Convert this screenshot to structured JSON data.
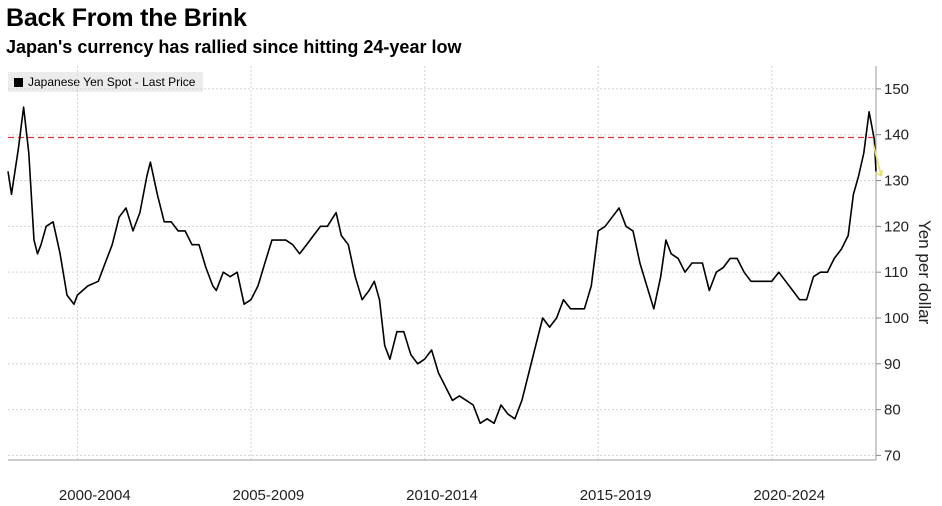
{
  "title": "Back From the Brink",
  "subtitle": "Japan's currency has rallied since hitting 24-year low",
  "chart_data": {
    "type": "line",
    "legend": "Japanese Yen Spot - Last Price",
    "ylabel": "Yen per dollar",
    "ylim": [
      69,
      155
    ],
    "xlim": [
      1998.0,
      2023.0
    ],
    "yticks": [
      70,
      80,
      90,
      100,
      110,
      120,
      130,
      140,
      150
    ],
    "xtick_labels": [
      "2000-2004",
      "2005-2009",
      "2010-2014",
      "2015-2019",
      "2020-2024"
    ],
    "xtick_centers": [
      2000.5,
      2005.5,
      2010.5,
      2015.5,
      2020.5
    ],
    "reference_line": 139.4,
    "series": [
      {
        "name": "Japanese Yen Spot - Last Price",
        "x": [
          1998.0,
          1998.1,
          1998.3,
          1998.45,
          1998.6,
          1998.75,
          1998.85,
          1998.95,
          1999.1,
          1999.3,
          1999.5,
          1999.7,
          1999.9,
          2000.0,
          2000.3,
          2000.6,
          2000.8,
          2001.0,
          2001.2,
          2001.4,
          2001.6,
          2001.8,
          2002.0,
          2002.1,
          2002.3,
          2002.5,
          2002.7,
          2002.9,
          2003.1,
          2003.3,
          2003.5,
          2003.7,
          2003.9,
          2004.0,
          2004.2,
          2004.4,
          2004.6,
          2004.8,
          2005.0,
          2005.2,
          2005.4,
          2005.6,
          2005.8,
          2006.0,
          2006.2,
          2006.4,
          2006.6,
          2006.8,
          2007.0,
          2007.2,
          2007.45,
          2007.6,
          2007.8,
          2008.0,
          2008.2,
          2008.4,
          2008.55,
          2008.7,
          2008.85,
          2009.0,
          2009.2,
          2009.4,
          2009.6,
          2009.8,
          2010.0,
          2010.2,
          2010.4,
          2010.6,
          2010.8,
          2011.0,
          2011.2,
          2011.4,
          2011.6,
          2011.8,
          2012.0,
          2012.2,
          2012.4,
          2012.6,
          2012.8,
          2013.0,
          2013.2,
          2013.4,
          2013.6,
          2013.8,
          2014.0,
          2014.2,
          2014.4,
          2014.6,
          2014.8,
          2015.0,
          2015.2,
          2015.4,
          2015.6,
          2015.8,
          2016.0,
          2016.2,
          2016.4,
          2016.6,
          2016.8,
          2016.95,
          2017.1,
          2017.3,
          2017.5,
          2017.7,
          2017.9,
          2018.0,
          2018.2,
          2018.4,
          2018.6,
          2018.8,
          2019.0,
          2019.2,
          2019.4,
          2019.6,
          2019.8,
          2020.0,
          2020.2,
          2020.4,
          2020.6,
          2020.8,
          2021.0,
          2021.2,
          2021.4,
          2021.6,
          2021.8,
          2022.0,
          2022.2,
          2022.35,
          2022.5,
          2022.65,
          2022.8,
          2022.95,
          2023.0
        ],
        "values": [
          132,
          127,
          137,
          146,
          136,
          117,
          114,
          116,
          120,
          121,
          114,
          105,
          103,
          105,
          107,
          108,
          112,
          116,
          122,
          124,
          119,
          123,
          131,
          134,
          127,
          121,
          121,
          119,
          119,
          116,
          116,
          111,
          107,
          106,
          110,
          109,
          110,
          103,
          104,
          107,
          112,
          117,
          117,
          117,
          116,
          114,
          116,
          118,
          120,
          120,
          123,
          118,
          116,
          109,
          104,
          106,
          108,
          104,
          94,
          91,
          97,
          97,
          92,
          90,
          91,
          93,
          88,
          85,
          82,
          83,
          82,
          81,
          77,
          78,
          77,
          81,
          79,
          78,
          82,
          88,
          94,
          100,
          98,
          100,
          104,
          102,
          102,
          102,
          107,
          119,
          120,
          122,
          124,
          120,
          119,
          112,
          107,
          102,
          109,
          117,
          114,
          113,
          110,
          112,
          112,
          112,
          106,
          110,
          111,
          113,
          113,
          110,
          108,
          108,
          108,
          108,
          110,
          108,
          106,
          104,
          104,
          109,
          110,
          110,
          113,
          115,
          118,
          127,
          131,
          136,
          145,
          139,
          132
        ]
      }
    ]
  }
}
